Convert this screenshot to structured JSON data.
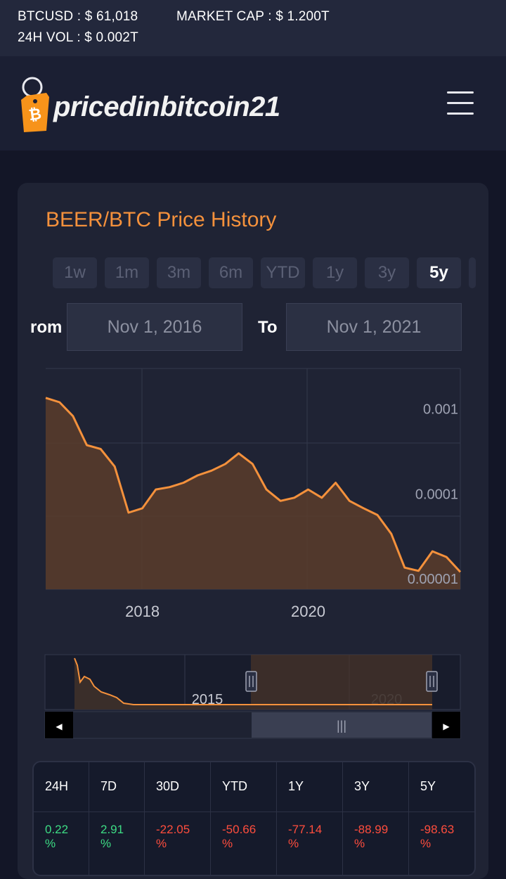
{
  "ticker": {
    "btcusd": "BTCUSD : $ 61,018",
    "market_cap": "MARKET CAP : $ 1.200T",
    "volume": "24H VOL : $ 0.002T"
  },
  "brand": {
    "name": "pricedinbitcoin21",
    "accent": "#f7931a"
  },
  "card": {
    "title": "BEER/BTC Price History"
  },
  "ranges": [
    {
      "label": "1w",
      "active": false
    },
    {
      "label": "1m",
      "active": false
    },
    {
      "label": "3m",
      "active": false
    },
    {
      "label": "6m",
      "active": false
    },
    {
      "label": "YTD",
      "active": false
    },
    {
      "label": "1y",
      "active": false
    },
    {
      "label": "3y",
      "active": false
    },
    {
      "label": "5y",
      "active": true
    }
  ],
  "date_range": {
    "from_label": "rom",
    "from_value": "Nov 1, 2016",
    "to_label": "To",
    "to_value": "Nov 1, 2021"
  },
  "chart_data": {
    "type": "area",
    "title": "",
    "xlabel": "",
    "ylabel": "",
    "y_scale": "log",
    "color": "#f4913c",
    "x_ticks": [
      "2018",
      "2020"
    ],
    "y_ticks": [
      "0.001",
      "0.0001",
      "0.00001"
    ],
    "xlim": [
      "2016-11-01",
      "2021-11-01"
    ],
    "ylim": [
      1e-05,
      0.004
    ],
    "series": [
      {
        "x": [
          "2016-11",
          "2017-01",
          "2017-03",
          "2017-05",
          "2017-07",
          "2017-09",
          "2017-11",
          "2018-01",
          "2018-03",
          "2018-05",
          "2018-07",
          "2018-09",
          "2018-11",
          "2019-01",
          "2019-03",
          "2019-05",
          "2019-07",
          "2019-09",
          "2019-11",
          "2020-01",
          "2020-03",
          "2020-05",
          "2020-07",
          "2020-09",
          "2020-11",
          "2021-01",
          "2021-03",
          "2021-05",
          "2021-07",
          "2021-09",
          "2021-11"
        ],
        "values": [
          0.0018,
          0.0016,
          0.0011,
          0.0005,
          0.00045,
          0.00028,
          8e-05,
          9e-05,
          0.00015,
          0.00016,
          0.00018,
          0.00022,
          0.00025,
          0.0003,
          0.0004,
          0.0003,
          0.00015,
          0.00011,
          0.00012,
          0.00015,
          0.00012,
          0.00018,
          0.00011,
          9e-05,
          7.5e-05,
          4.5e-05,
          1.8e-05,
          1.65e-05,
          2.8e-05,
          2.4e-05,
          1.6e-05
        ]
      }
    ]
  },
  "navigator": {
    "x_ticks": [
      "2015",
      "2020"
    ],
    "scrollbar_grip": "|||",
    "left_arrow": "◀",
    "right_arrow": "▶"
  },
  "performance": [
    {
      "period": "24H",
      "value": "0.22",
      "unit": "%",
      "trend": "up"
    },
    {
      "period": "7D",
      "value": "2.91",
      "unit": "%",
      "trend": "up"
    },
    {
      "period": "30D",
      "value": "-22.05",
      "unit": "%",
      "trend": "down"
    },
    {
      "period": "YTD",
      "value": "-50.66",
      "unit": "%",
      "trend": "down"
    },
    {
      "period": "1Y",
      "value": "-77.14",
      "unit": "%",
      "trend": "down"
    },
    {
      "period": "3Y",
      "value": "-88.99",
      "unit": "%",
      "trend": "down"
    },
    {
      "period": "5Y",
      "value": "-98.63",
      "unit": "%",
      "trend": "down"
    }
  ],
  "colors": {
    "positive": "#3ddc84",
    "negative": "#ff4d3d",
    "title": "#f4913c"
  }
}
